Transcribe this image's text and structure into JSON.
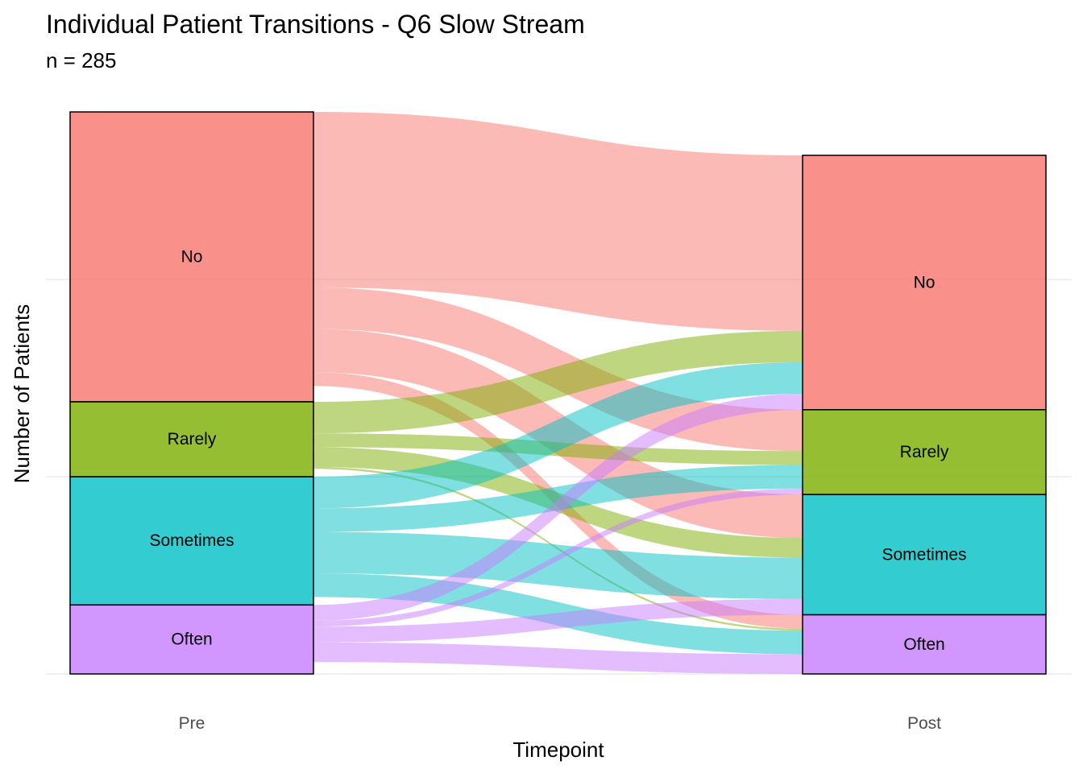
{
  "chart_data": {
    "type": "alluvial",
    "title": "Individual Patient Transitions - Q6 Slow Stream",
    "subtitle": "n = 285",
    "xlabel": "Timepoint",
    "ylabel": "Number of Patients",
    "timepoints": [
      "Pre",
      "Post"
    ],
    "categories": [
      "No",
      "Rarely",
      "Sometimes",
      "Often"
    ],
    "colors": {
      "No": "#F8766D",
      "Rarely": "#7CAE00",
      "Sometimes": "#00BFC4",
      "Often": "#C77CFF"
    },
    "pre_counts": {
      "No": 147,
      "Rarely": 38,
      "Sometimes": 65,
      "Often": 35
    },
    "post_counts": {
      "No": 129,
      "Rarely": 43,
      "Sometimes": 61,
      "Often": 30
    },
    "flows": [
      {
        "from": "No",
        "to": "No",
        "value": 89
      },
      {
        "from": "No",
        "to": "Rarely",
        "value": 21
      },
      {
        "from": "No",
        "to": "Sometimes",
        "value": 22
      },
      {
        "from": "No",
        "to": "Often",
        "value": 7
      },
      {
        "from": "Rarely",
        "to": "No",
        "value": 16
      },
      {
        "from": "Rarely",
        "to": "Rarely",
        "value": 7
      },
      {
        "from": "Rarely",
        "to": "Sometimes",
        "value": 10
      },
      {
        "from": "Rarely",
        "to": "Often",
        "value": 1
      },
      {
        "from": "Sometimes",
        "to": "No",
        "value": 16
      },
      {
        "from": "Sometimes",
        "to": "Rarely",
        "value": 12
      },
      {
        "from": "Sometimes",
        "to": "Sometimes",
        "value": 21
      },
      {
        "from": "Sometimes",
        "to": "Often",
        "value": 12
      },
      {
        "from": "Often",
        "to": "No",
        "value": 8
      },
      {
        "from": "Often",
        "to": "Rarely",
        "value": 3
      },
      {
        "from": "Often",
        "to": "Sometimes",
        "value": 8
      },
      {
        "from": "Often",
        "to": "Often",
        "value": 10
      }
    ],
    "grid": true
  }
}
